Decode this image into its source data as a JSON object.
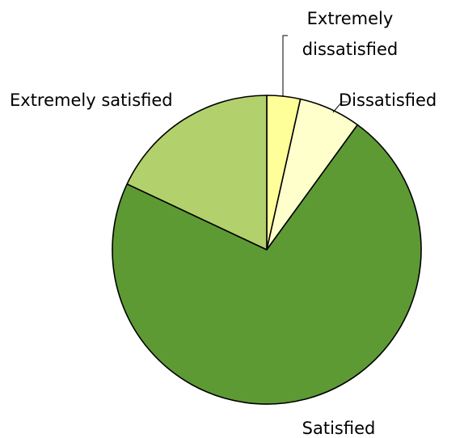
{
  "chart_data": {
    "type": "pie",
    "title": "",
    "slices": [
      {
        "label": "Extremely dissatisfied",
        "label_lines": [
          "Extremely",
          "dissatisfied"
        ],
        "value": 3.5,
        "color": "#FFFF99"
      },
      {
        "label": "Dissatisfied",
        "label_lines": [
          "Dissatisfied"
        ],
        "value": 6.5,
        "color": "#FFFFCC"
      },
      {
        "label": "Satisfied",
        "label_lines": [
          "Satisfied"
        ],
        "value": 72,
        "color": "#5E9A34"
      },
      {
        "label": "Extremely satisfied",
        "label_lines": [
          "Extremely satisfied"
        ],
        "value": 18,
        "color": "#B2D16C"
      }
    ],
    "start_angle": "12 o'clock",
    "direction": "clockwise",
    "legend": "none"
  }
}
